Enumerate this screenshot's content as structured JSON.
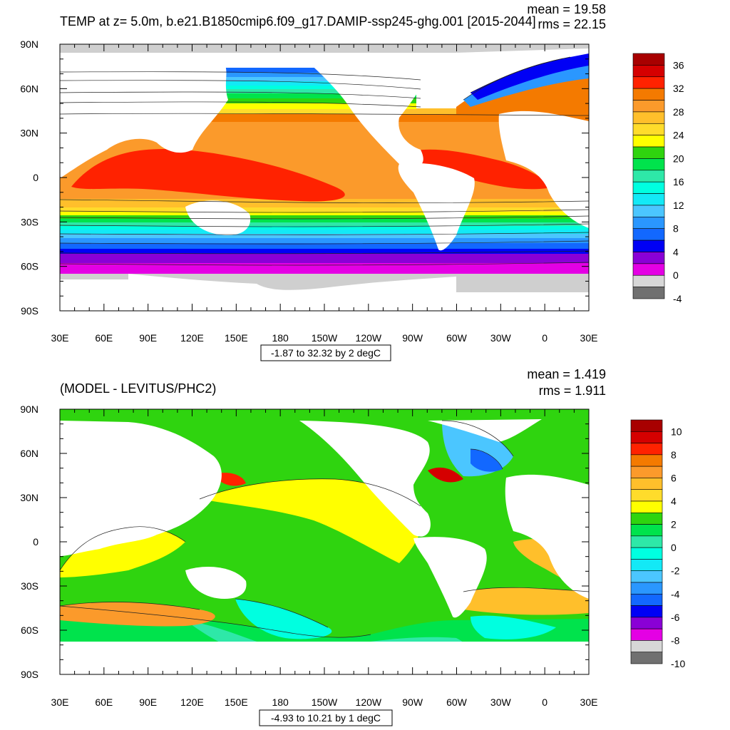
{
  "chart_data": [
    {
      "type": "heatmap",
      "title": "TEMP at z=   5.0m, b.e21.B1850cmip6.f09_g17.DAMIP-ssp245-ghg.001 [2015-2044]",
      "stats": [
        "mean = 19.58",
        "rms = 22.15"
      ],
      "range_label": "-1.87 to 32.32 by 2 degC",
      "x_ticks": [
        "30E",
        "60E",
        "90E",
        "120E",
        "150E",
        "180",
        "150W",
        "120W",
        "90W",
        "60W",
        "30W",
        "0",
        "30E"
      ],
      "y_ticks": [
        "90N",
        "60N",
        "30N",
        "0",
        "30S",
        "60S",
        "90S"
      ],
      "xlim": [
        30,
        390
      ],
      "ylim": [
        -90,
        90
      ],
      "colorbar_labels": [
        "36",
        "32",
        "28",
        "24",
        "20",
        "16",
        "12",
        "8",
        "4",
        "0",
        "-4"
      ],
      "colorbar_colors": [
        "#a80000",
        "#d50000",
        "#ff2200",
        "#f47a00",
        "#fb9a2b",
        "#ffbf2b",
        "#ffdc2b",
        "#ffff00",
        "#2fd40f",
        "#00e34c",
        "#2ee8a8",
        "#00ffe0",
        "#13e9f6",
        "#4bc6ff",
        "#2a97ff",
        "#1268ff",
        "#0000f5",
        "#8a00d6",
        "#e400e4",
        "#d7d7d7",
        "#707070"
      ],
      "mean": 19.58,
      "rms": 22.15
    },
    {
      "type": "heatmap",
      "title": "(MODEL - LEVITUS/PHC2)",
      "stats": [
        "mean = 1.419",
        "rms = 1.911"
      ],
      "range_label": "-4.93 to 10.21 by 1 degC",
      "x_ticks": [
        "30E",
        "60E",
        "90E",
        "120E",
        "150E",
        "180",
        "150W",
        "120W",
        "90W",
        "60W",
        "30W",
        "0",
        "30E"
      ],
      "y_ticks": [
        "90N",
        "60N",
        "30N",
        "0",
        "30S",
        "60S",
        "90S"
      ],
      "xlim": [
        30,
        390
      ],
      "ylim": [
        -90,
        90
      ],
      "colorbar_labels": [
        "10",
        "8",
        "6",
        "4",
        "2",
        "0",
        "-2",
        "-4",
        "-6",
        "-8",
        "-10"
      ],
      "colorbar_colors": [
        "#a80000",
        "#d50000",
        "#ff2200",
        "#f47a00",
        "#fb9a2b",
        "#ffbf2b",
        "#ffdc2b",
        "#ffff00",
        "#2fd40f",
        "#00e34c",
        "#2ee8a8",
        "#00ffe0",
        "#13e9f6",
        "#4bc6ff",
        "#2a97ff",
        "#1268ff",
        "#0000f5",
        "#8a00d6",
        "#e400e4",
        "#d7d7d7",
        "#707070"
      ],
      "mean": 1.419,
      "rms": 1.911
    }
  ],
  "colors": {
    "land": "#ffffff",
    "sea_ice_gray": "#cfcfcf",
    "contour": "#222222"
  }
}
